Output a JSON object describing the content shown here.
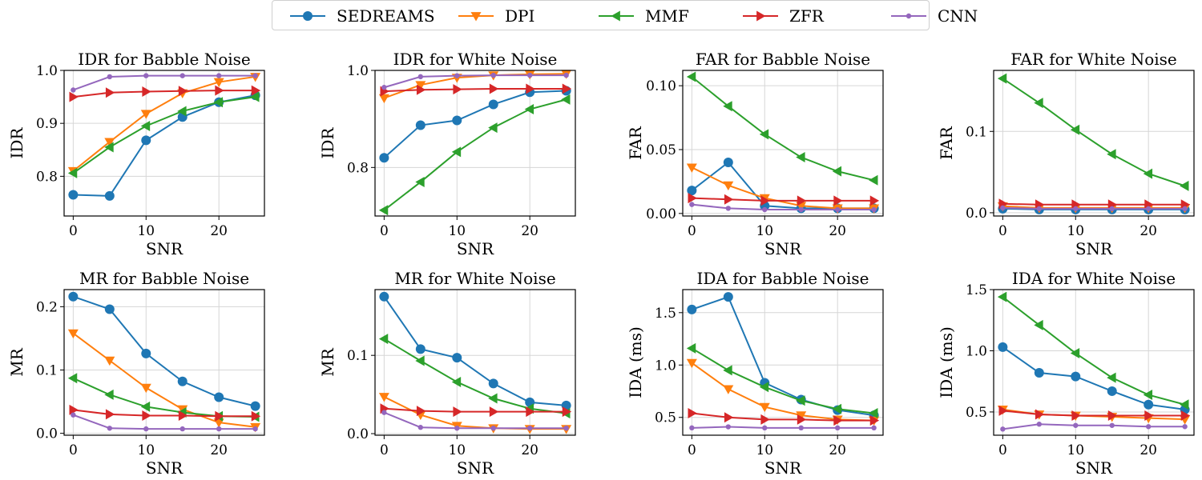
{
  "legend": [
    {
      "name": "SEDREAMS",
      "color": "#1f77b4",
      "marker": "circle"
    },
    {
      "name": "DPI",
      "color": "#ff7f0e",
      "marker": "triangle-down"
    },
    {
      "name": "MMF",
      "color": "#2ca02c",
      "marker": "triangle-left"
    },
    {
      "name": "ZFR",
      "color": "#d62728",
      "marker": "triangle-right"
    },
    {
      "name": "CNN",
      "color": "#9467bd",
      "marker": "dot"
    }
  ],
  "chart_data": [
    {
      "type": "line",
      "title": "IDR for Babble Noise",
      "xlabel": "SNR",
      "ylabel": "IDR",
      "x": [
        0,
        5,
        10,
        15,
        20,
        25
      ],
      "xlim": [
        -1.25,
        26.25
      ],
      "ylim": [
        0.725,
        1.0
      ],
      "xticks": [
        "0",
        "10",
        "20"
      ],
      "yticks": [
        "0.8",
        "0.9",
        "1.0"
      ],
      "grid": true,
      "series": [
        {
          "name": "SEDREAMS",
          "values": [
            0.765,
            0.763,
            0.868,
            0.912,
            0.94,
            0.953
          ]
        },
        {
          "name": "DPI",
          "values": [
            0.81,
            0.865,
            0.918,
            0.957,
            0.978,
            0.988
          ]
        },
        {
          "name": "MMF",
          "values": [
            0.806,
            0.855,
            0.895,
            0.923,
            0.94,
            0.95
          ]
        },
        {
          "name": "ZFR",
          "values": [
            0.95,
            0.958,
            0.96,
            0.961,
            0.962,
            0.962
          ]
        },
        {
          "name": "CNN",
          "values": [
            0.963,
            0.988,
            0.99,
            0.99,
            0.99,
            0.99
          ]
        }
      ]
    },
    {
      "type": "line",
      "title": "IDR for White Noise",
      "xlabel": "SNR",
      "ylabel": "IDR",
      "x": [
        0,
        5,
        10,
        15,
        20,
        25
      ],
      "xlim": [
        -1.25,
        26.25
      ],
      "ylim": [
        0.7,
        1.0
      ],
      "xticks": [
        "0",
        "10",
        "20"
      ],
      "yticks": [
        "0.8",
        "1.0"
      ],
      "grid": true,
      "series": [
        {
          "name": "SEDREAMS",
          "values": [
            0.82,
            0.887,
            0.897,
            0.93,
            0.955,
            0.958
          ]
        },
        {
          "name": "DPI",
          "values": [
            0.943,
            0.97,
            0.985,
            0.99,
            0.992,
            0.993
          ]
        },
        {
          "name": "MMF",
          "values": [
            0.712,
            0.77,
            0.832,
            0.882,
            0.92,
            0.94
          ]
        },
        {
          "name": "ZFR",
          "values": [
            0.957,
            0.96,
            0.961,
            0.962,
            0.962,
            0.962
          ]
        },
        {
          "name": "CNN",
          "values": [
            0.965,
            0.987,
            0.989,
            0.99,
            0.99,
            0.99
          ]
        }
      ]
    },
    {
      "type": "line",
      "title": "FAR for Babble Noise",
      "xlabel": "SNR",
      "ylabel": "FAR",
      "x": [
        0,
        5,
        10,
        15,
        20,
        25
      ],
      "xlim": [
        -1.25,
        26.25
      ],
      "ylim": [
        -0.002,
        0.112
      ],
      "xticks": [
        "0",
        "10",
        "20"
      ],
      "yticks": [
        "0.00",
        "0.05",
        "0.10"
      ],
      "grid": true,
      "series": [
        {
          "name": "SEDREAMS",
          "values": [
            0.018,
            0.04,
            0.006,
            0.004,
            0.004,
            0.004
          ]
        },
        {
          "name": "DPI",
          "values": [
            0.036,
            0.022,
            0.012,
            0.006,
            0.004,
            0.004
          ]
        },
        {
          "name": "MMF",
          "values": [
            0.107,
            0.084,
            0.062,
            0.044,
            0.033,
            0.026
          ]
        },
        {
          "name": "ZFR",
          "values": [
            0.012,
            0.011,
            0.01,
            0.01,
            0.01,
            0.01
          ]
        },
        {
          "name": "CNN",
          "values": [
            0.007,
            0.004,
            0.003,
            0.003,
            0.003,
            0.003
          ]
        }
      ]
    },
    {
      "type": "line",
      "title": "FAR for White Noise",
      "xlabel": "SNR",
      "ylabel": "FAR",
      "x": [
        0,
        5,
        10,
        15,
        20,
        25
      ],
      "xlim": [
        -1.25,
        26.25
      ],
      "ylim": [
        -0.004,
        0.175
      ],
      "xticks": [
        "0",
        "10",
        "20"
      ],
      "yticks": [
        "0.0",
        "0.1"
      ],
      "grid": true,
      "series": [
        {
          "name": "SEDREAMS",
          "values": [
            0.005,
            0.004,
            0.004,
            0.004,
            0.004,
            0.004
          ]
        },
        {
          "name": "DPI",
          "values": [
            0.008,
            0.006,
            0.006,
            0.006,
            0.006,
            0.006
          ]
        },
        {
          "name": "MMF",
          "values": [
            0.165,
            0.135,
            0.102,
            0.072,
            0.048,
            0.033
          ]
        },
        {
          "name": "ZFR",
          "values": [
            0.011,
            0.01,
            0.01,
            0.01,
            0.01,
            0.01
          ]
        },
        {
          "name": "CNN",
          "values": [
            0.006,
            0.005,
            0.005,
            0.005,
            0.005,
            0.005
          ]
        }
      ]
    },
    {
      "type": "line",
      "title": "MR for Babble Noise",
      "xlabel": "SNR",
      "ylabel": "MR",
      "x": [
        0,
        5,
        10,
        15,
        20,
        25
      ],
      "xlim": [
        -1.25,
        26.25
      ],
      "ylim": [
        -0.003,
        0.227
      ],
      "xticks": [
        "0",
        "10",
        "20"
      ],
      "yticks": [
        "0.0",
        "0.1",
        "0.2"
      ],
      "grid": true,
      "series": [
        {
          "name": "SEDREAMS",
          "values": [
            0.216,
            0.196,
            0.126,
            0.082,
            0.057,
            0.043
          ]
        },
        {
          "name": "DPI",
          "values": [
            0.158,
            0.115,
            0.072,
            0.038,
            0.017,
            0.01
          ]
        },
        {
          "name": "MMF",
          "values": [
            0.087,
            0.061,
            0.042,
            0.033,
            0.027,
            0.026
          ]
        },
        {
          "name": "ZFR",
          "values": [
            0.037,
            0.03,
            0.028,
            0.028,
            0.027,
            0.027
          ]
        },
        {
          "name": "CNN",
          "values": [
            0.029,
            0.008,
            0.007,
            0.007,
            0.007,
            0.007
          ]
        }
      ]
    },
    {
      "type": "line",
      "title": "MR for White Noise",
      "xlabel": "SNR",
      "ylabel": "MR",
      "x": [
        0,
        5,
        10,
        15,
        20,
        25
      ],
      "xlim": [
        -1.25,
        26.25
      ],
      "ylim": [
        -0.002,
        0.184
      ],
      "xticks": [
        "0",
        "10",
        "20"
      ],
      "yticks": [
        "0.0",
        "0.1"
      ],
      "grid": true,
      "series": [
        {
          "name": "SEDREAMS",
          "values": [
            0.175,
            0.108,
            0.097,
            0.064,
            0.04,
            0.036
          ]
        },
        {
          "name": "DPI",
          "values": [
            0.047,
            0.024,
            0.01,
            0.007,
            0.006,
            0.006
          ]
        },
        {
          "name": "MMF",
          "values": [
            0.121,
            0.093,
            0.066,
            0.045,
            0.032,
            0.026
          ]
        },
        {
          "name": "ZFR",
          "values": [
            0.032,
            0.029,
            0.028,
            0.028,
            0.028,
            0.028
          ]
        },
        {
          "name": "CNN",
          "values": [
            0.027,
            0.008,
            0.007,
            0.007,
            0.007,
            0.007
          ]
        }
      ]
    },
    {
      "type": "line",
      "title": "IDA for Babble Noise",
      "xlabel": "SNR",
      "ylabel": "IDA (ms)",
      "x": [
        0,
        5,
        10,
        15,
        20,
        25
      ],
      "xlim": [
        -1.25,
        26.25
      ],
      "ylim": [
        0.33,
        1.72
      ],
      "xticks": [
        "0",
        "10",
        "20"
      ],
      "yticks": [
        "0.5",
        "1.0",
        "1.5"
      ],
      "grid": true,
      "series": [
        {
          "name": "SEDREAMS",
          "values": [
            1.53,
            1.65,
            0.83,
            0.67,
            0.57,
            0.52
          ]
        },
        {
          "name": "DPI",
          "values": [
            1.02,
            0.77,
            0.6,
            0.52,
            0.48,
            0.47
          ]
        },
        {
          "name": "MMF",
          "values": [
            1.16,
            0.95,
            0.79,
            0.66,
            0.58,
            0.54
          ]
        },
        {
          "name": "ZFR",
          "values": [
            0.54,
            0.5,
            0.48,
            0.48,
            0.47,
            0.47
          ]
        },
        {
          "name": "CNN",
          "values": [
            0.4,
            0.41,
            0.4,
            0.4,
            0.4,
            0.4
          ]
        }
      ]
    },
    {
      "type": "line",
      "title": "IDA for White Noise",
      "xlabel": "SNR",
      "ylabel": "IDA (ms)",
      "x": [
        0,
        5,
        10,
        15,
        20,
        25
      ],
      "xlim": [
        -1.25,
        26.25
      ],
      "ylim": [
        0.31,
        1.5
      ],
      "xticks": [
        "0",
        "10",
        "20"
      ],
      "yticks": [
        "0.5",
        "1.0",
        "1.5"
      ],
      "grid": true,
      "series": [
        {
          "name": "SEDREAMS",
          "values": [
            1.03,
            0.82,
            0.79,
            0.67,
            0.56,
            0.52
          ]
        },
        {
          "name": "DPI",
          "values": [
            0.52,
            0.48,
            0.47,
            0.46,
            0.45,
            0.44
          ]
        },
        {
          "name": "MMF",
          "values": [
            1.44,
            1.21,
            0.98,
            0.78,
            0.64,
            0.56
          ]
        },
        {
          "name": "ZFR",
          "values": [
            0.51,
            0.48,
            0.47,
            0.47,
            0.47,
            0.47
          ]
        },
        {
          "name": "CNN",
          "values": [
            0.36,
            0.4,
            0.39,
            0.39,
            0.38,
            0.38
          ]
        }
      ]
    }
  ]
}
